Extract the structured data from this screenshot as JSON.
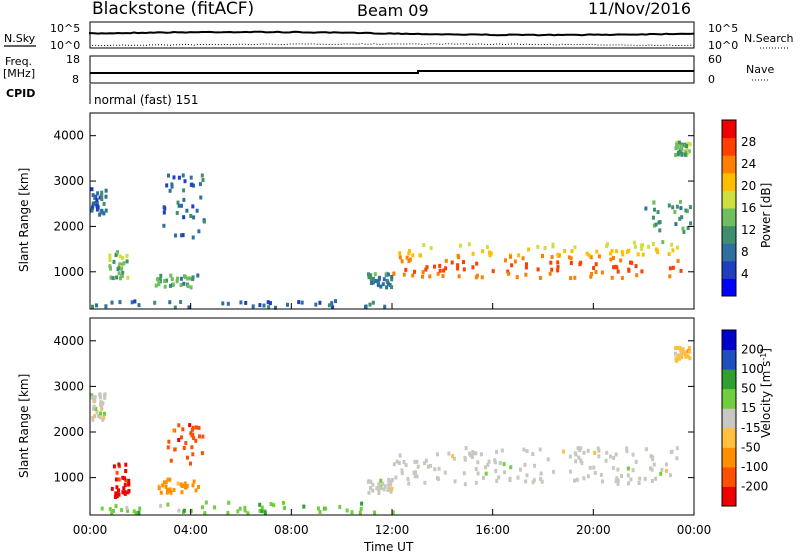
{
  "header": {
    "title": "Blackstone (fitACF)",
    "beam": "Beam 09",
    "date": "11/Nov/2016"
  },
  "top_panels": {
    "noise": {
      "left_label": "N.Sky",
      "right_label": "N.Search",
      "left_ticks": [
        "10^5",
        "10^0"
      ],
      "right_ticks": [
        "10^5",
        "10^0"
      ]
    },
    "freq": {
      "left_label": "Freq.",
      "left_unit": "[MHz]",
      "left_ticks": [
        "18",
        "8"
      ],
      "right_label": "Nave",
      "right_ticks": [
        "60",
        "0"
      ]
    },
    "cpid": {
      "label": "CPID",
      "text": "normal (fast) 151"
    }
  },
  "x_axis": {
    "label": "Time UT",
    "ticks": [
      "00:00",
      "04:00",
      "08:00",
      "12:00",
      "16:00",
      "20:00",
      "00:00"
    ]
  },
  "colors": {
    "power": [
      "#0000ff",
      "#1f3fbf",
      "#2f6fa0",
      "#3f8f6f",
      "#6fbf5f",
      "#cfdf3f",
      "#ffbf00",
      "#ff7f00",
      "#ff3f00",
      "#ee0000"
    ],
    "velocity": [
      "#ee0000",
      "#ff4f00",
      "#ff8f00",
      "#ffbf3f",
      "#c8c8c0",
      "#6fcf3f",
      "#2fa02f",
      "#1f4fbf",
      "#0000cc"
    ]
  },
  "chart_data": [
    {
      "type": "heatmap",
      "name": "power",
      "ylabel": "Slant Range [km]",
      "ylim": [
        180,
        4500
      ],
      "y_ticks": [
        1000,
        2000,
        3000,
        4000
      ],
      "x_range_hours": [
        0,
        24
      ],
      "colorbar": {
        "label": "Power [dB]",
        "min": 0,
        "max": 32,
        "ticks": [
          4,
          8,
          12,
          16,
          20,
          24,
          28
        ]
      },
      "features": [
        {
          "t": [
            12.0,
            23.5
          ],
          "range_km": [
            900,
            1700
          ],
          "value_db": 18,
          "trace": "far-range echo band, strongest near 1100-1300 km"
        },
        {
          "t": [
            0.0,
            0.6
          ],
          "range_km": [
            2300,
            2900
          ],
          "value_db": 8
        },
        {
          "t": [
            0.7,
            1.5
          ],
          "range_km": [
            900,
            1500
          ],
          "value_db": 14
        },
        {
          "t": [
            2.5,
            4.3
          ],
          "range_km": [
            700,
            1000
          ],
          "value_db": 12
        },
        {
          "t": [
            2.8,
            4.5
          ],
          "range_km": [
            1800,
            3200
          ],
          "value_db": 8
        },
        {
          "t": [
            0.0,
            12.0
          ],
          "range_km": [
            180,
            400
          ],
          "value_db": 8
        },
        {
          "t": [
            11.0,
            12.0
          ],
          "range_km": [
            700,
            1000
          ],
          "value_db": 10
        },
        {
          "t": [
            23.2,
            23.8
          ],
          "range_km": [
            3600,
            3900
          ],
          "value_db": 14
        },
        {
          "t": [
            22.0,
            24.0
          ],
          "range_km": [
            1900,
            2600
          ],
          "value_db": 12
        }
      ]
    },
    {
      "type": "heatmap",
      "name": "velocity",
      "ylabel": "Slant Range [km]",
      "ylim": [
        180,
        4500
      ],
      "y_ticks": [
        1000,
        2000,
        3000,
        4000
      ],
      "x_range_hours": [
        0,
        24
      ],
      "colorbar": {
        "label": "Velocity [m s^-1]",
        "ticks": [
          200,
          100,
          50,
          15,
          -15,
          -50,
          -100,
          -200
        ]
      },
      "features": [
        {
          "t": [
            12.0,
            23.5
          ],
          "range_km": [
            900,
            1700
          ],
          "value_ms": 0
        },
        {
          "t": [
            0.0,
            0.6
          ],
          "range_km": [
            2300,
            2900
          ],
          "value_ms": 0
        },
        {
          "t": [
            0.8,
            1.5
          ],
          "range_km": [
            600,
            1400
          ],
          "value_ms": -150
        },
        {
          "t": [
            2.5,
            4.3
          ],
          "range_km": [
            700,
            1000
          ],
          "value_ms": -80
        },
        {
          "t": [
            3.0,
            4.5
          ],
          "range_km": [
            1300,
            2200
          ],
          "value_ms": -100
        },
        {
          "t": [
            0.0,
            12.0
          ],
          "range_km": [
            180,
            500
          ],
          "value_ms": 30
        },
        {
          "t": [
            11.0,
            12.0
          ],
          "range_km": [
            700,
            1000
          ],
          "value_ms": 0
        },
        {
          "t": [
            23.2,
            23.8
          ],
          "range_km": [
            3600,
            3900
          ],
          "value_ms": -20
        }
      ]
    }
  ]
}
